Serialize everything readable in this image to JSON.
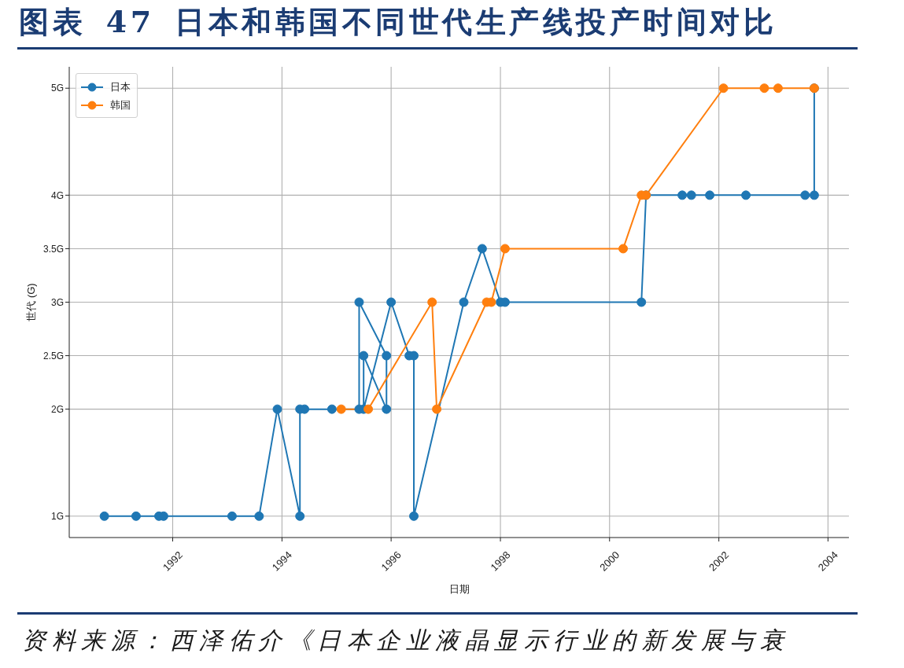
{
  "chart_data": {
    "type": "line",
    "title": "图表 47 日本和韩国不同世代生产线投产时间对比",
    "xlabel": "日期",
    "ylabel": "世代 (G)",
    "annotations": [
      "资料来源：西泽佑介《日本企业液晶显示行业的新发展与衰"
    ],
    "xlim": [
      "1990-02-08",
      "2004-05-20"
    ],
    "xticks": [
      "1992",
      "1994",
      "1996",
      "1998",
      "2000",
      "2002",
      "2004"
    ],
    "ylim": [
      0.8,
      5.2
    ],
    "yticks": [
      {
        "value": 1,
        "label": "1G"
      },
      {
        "value": 2,
        "label": "2G"
      },
      {
        "value": 2.5,
        "label": "2.5G"
      },
      {
        "value": 3,
        "label": "3G"
      },
      {
        "value": 3.5,
        "label": "3.5G"
      },
      {
        "value": 4,
        "label": "4G"
      },
      {
        "value": 5,
        "label": "5G"
      }
    ],
    "grid": true,
    "legend": "top left",
    "marker": "circle",
    "line_style": "solid",
    "series": [
      {
        "name": "日本",
        "color": "#1f77b4",
        "x": [
          "1990-10",
          "1991-05",
          "1991-10",
          "1991-11",
          "1993-02",
          "1993-08",
          "1993-12",
          "1994-05",
          "1994-05",
          "1994-06",
          "1994-12",
          "1995-06",
          "1995-06",
          "1995-12",
          "1995-12",
          "1995-07",
          "1995-07",
          "1996-01",
          "1996-05",
          "1996-06",
          "1996-06",
          "1997-05",
          "1997-09",
          "1998-01",
          "1998-02",
          "2000-08",
          "2000-09",
          "2001-05",
          "2001-07",
          "2001-11",
          "2002-07",
          "2003-08",
          "2003-10",
          "2003-10"
        ],
        "values": [
          1,
          1,
          1,
          1,
          1,
          1,
          2,
          1,
          2,
          2,
          2,
          2,
          3,
          2.5,
          2,
          2.5,
          2,
          3,
          2.5,
          2.5,
          1,
          3,
          3.5,
          3,
          3,
          3,
          4,
          4,
          4,
          4,
          4,
          4,
          4,
          5
        ]
      },
      {
        "name": "韩国",
        "color": "#ff7f0e",
        "x": [
          "1995-02",
          "1995-08",
          "1996-10",
          "1996-11",
          "1997-10",
          "1997-11",
          "1998-02",
          "2000-04",
          "2000-08",
          "2000-09",
          "2002-02",
          "2002-11",
          "2003-02",
          "2003-10"
        ],
        "values": [
          2,
          2,
          3,
          2,
          3,
          3,
          3.5,
          3.5,
          4,
          4,
          5,
          5,
          5,
          5
        ]
      }
    ]
  }
}
